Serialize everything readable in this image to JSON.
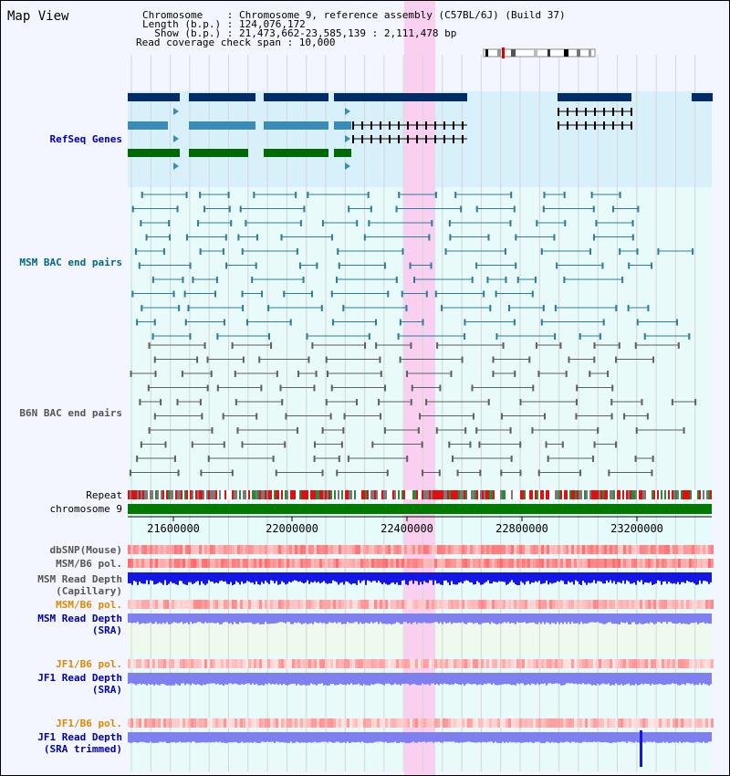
{
  "title": "Map View",
  "info": {
    "chromosome": "Chromosome    : Chromosome 9, reference assembly (C57BL/6J) (Build 37)",
    "length": "Length (b.p.) : 124,076,172",
    "show": "  Show (b.p.) : 21,473,662-23,585,139 : 2,111,478 bp",
    "span": "Read coverage check span : 10,000"
  },
  "tracks": {
    "refseq": "RefSeq Genes",
    "msm_bac": "MSM BAC end pairs",
    "b6n_bac": "B6N BAC end pairs",
    "repeat": "Repeat",
    "chromosome": "chromosome 9",
    "dbsnp": "dbSNP(Mouse)",
    "msm_b6_pol": "MSM/B6 pol.",
    "msm_depth_cap_1": "MSM Read Depth",
    "msm_depth_cap_2": "(Capillary)",
    "msm_b6_pol_2": "MSM/B6 pol.",
    "msm_depth_sra_1": "MSM Read Depth",
    "msm_depth_sra_2": "(SRA)",
    "jf1_b6_pol": "JF1/B6 pol.",
    "jf1_depth_sra_1": "JF1 Read Depth",
    "jf1_depth_sra_2": "(SRA)",
    "jf1_b6_pol_2": "JF1/B6 pol.",
    "jf1_depth_trim_1": "JF1 Read Depth",
    "jf1_depth_trim_2": "(SRA trimmed)"
  },
  "axis_ticks": [
    "21600000",
    "22000000",
    "22400000",
    "22800000",
    "23200000"
  ],
  "colors": {
    "navy_label": "#0000aa",
    "teal_label": "#006688",
    "gray_label": "#555555",
    "orange_label": "#dd8800",
    "refseq_bg": "#d8f0fa",
    "bac_bg": "#e8fafa",
    "highlight": "#f9d0f0",
    "gene_navy": "#002c6a",
    "gene_teal": "#3a8cb6",
    "gene_green": "#006a00",
    "depth_blue": "#1515e6",
    "depth_light": "#7f7ff0"
  }
}
